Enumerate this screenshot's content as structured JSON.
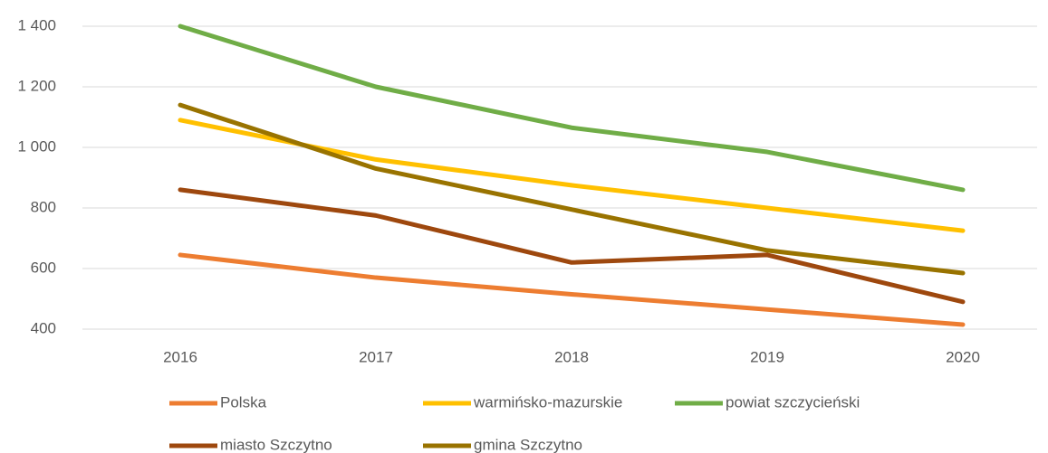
{
  "chart_data": {
    "type": "line",
    "categories": [
      "2016",
      "2017",
      "2018",
      "2019",
      "2020"
    ],
    "series": [
      {
        "name": "Polska",
        "color": "#ed7d31",
        "values": [
          645,
          570,
          515,
          465,
          415
        ]
      },
      {
        "name": "warmińsko-mazurskie",
        "color": "#ffc000",
        "values": [
          1090,
          960,
          875,
          800,
          725
        ]
      },
      {
        "name": "powiat szczycieński",
        "color": "#70ad47",
        "values": [
          1400,
          1200,
          1065,
          985,
          860
        ]
      },
      {
        "name": "miasto Szczytno",
        "color": "#9e480e",
        "values": [
          860,
          775,
          620,
          645,
          490
        ]
      },
      {
        "name": "gmina Szczytno",
        "color": "#997300",
        "values": [
          1140,
          930,
          795,
          660,
          585
        ]
      }
    ],
    "ylim": [
      400,
      1400
    ],
    "yticks": [
      400,
      600,
      800,
      {
        "value": 1000,
        "label": "1 000"
      },
      {
        "value": 1200,
        "label": "1 200"
      },
      {
        "value": 1400,
        "label": "1 400"
      }
    ],
    "grid": true,
    "legend": "bottom"
  }
}
